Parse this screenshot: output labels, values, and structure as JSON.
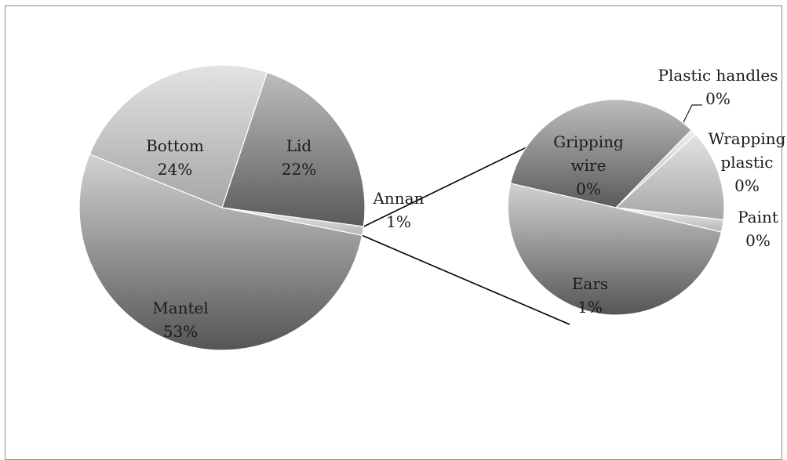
{
  "chart_data": {
    "type": "bar-of-pie",
    "title": "",
    "primary_pie": {
      "slices": [
        {
          "label": "Bottom",
          "value": 24,
          "value_label": "24%"
        },
        {
          "label": "Lid",
          "value": 22,
          "value_label": "22%"
        },
        {
          "label": "Annan",
          "value": 1,
          "value_label": "1%"
        },
        {
          "label": "Mantel",
          "value": 53,
          "value_label": "53%"
        }
      ]
    },
    "secondary_pie": {
      "breakdown_of": "Annan",
      "slices": [
        {
          "label": "Gripping wire",
          "label_lines": [
            "Gripping",
            "wire"
          ],
          "value": 0.37,
          "value_label": "0%"
        },
        {
          "label": "Plastic handles",
          "label_lines": [
            "Plastic handles"
          ],
          "value": 0.01,
          "value_label": "0%"
        },
        {
          "label": "Wrapping plastic",
          "label_lines": [
            "Wrapping",
            "plastic"
          ],
          "value": 0.15,
          "value_label": "0%"
        },
        {
          "label": "Paint",
          "label_lines": [
            "Paint"
          ],
          "value": 0.02,
          "value_label": "0%"
        },
        {
          "label": "Ears",
          "label_lines": [
            "Ears"
          ],
          "value": 0.55,
          "value_label": "1%"
        }
      ]
    },
    "legend": "none",
    "colors": {
      "slice_fill": "#a9a9a9",
      "slice_light": "#dedede",
      "slice_dark": "#5e5e5e",
      "connector": "#000000",
      "border": "#8c8c8c"
    }
  }
}
